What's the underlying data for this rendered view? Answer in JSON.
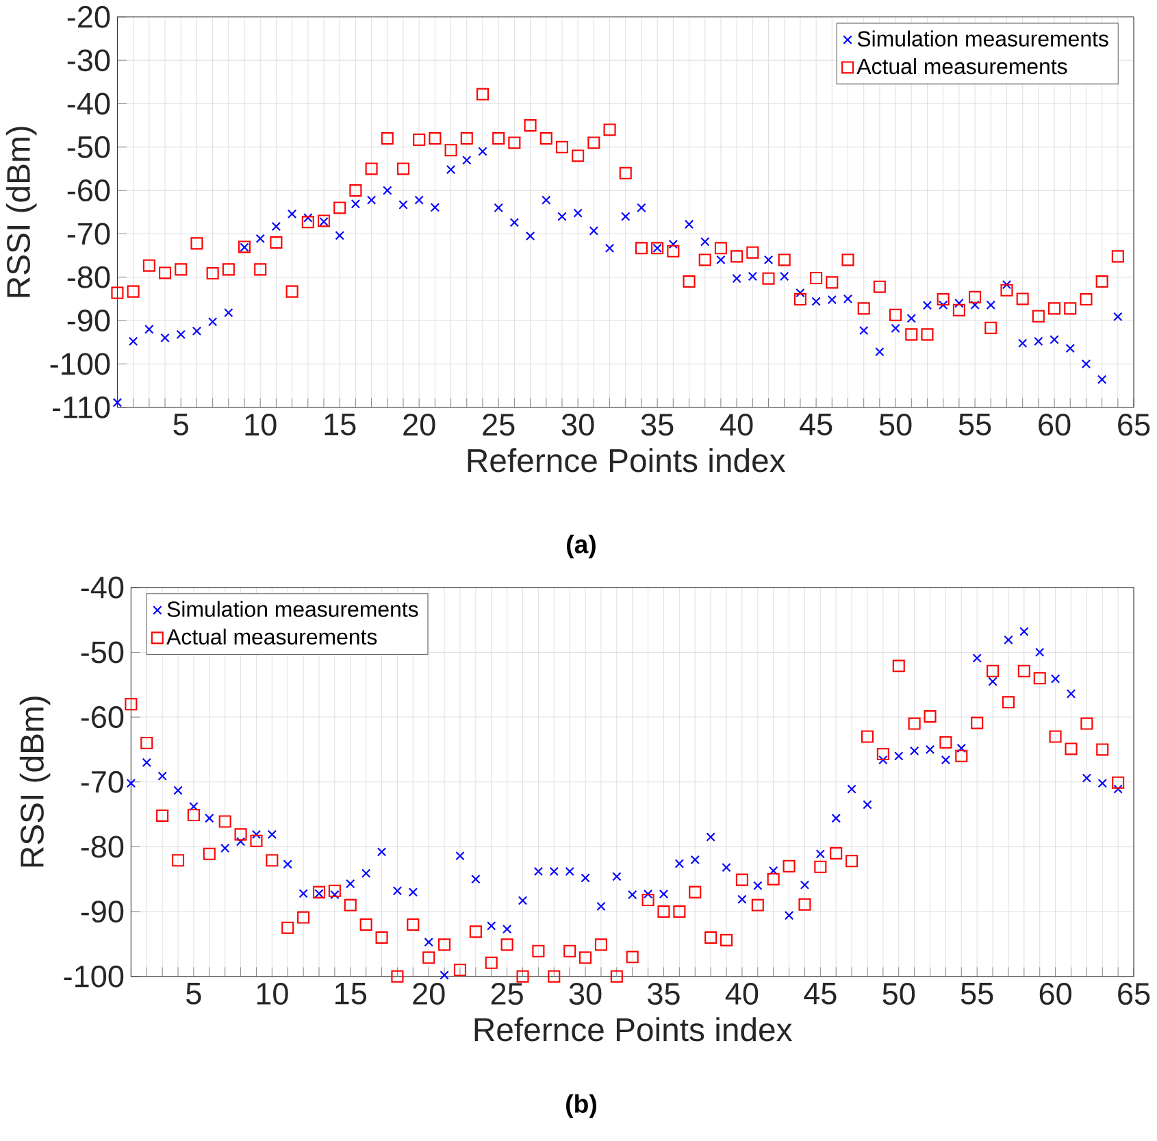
{
  "chart_data": [
    {
      "type": "scatter",
      "xlabel": "Refernce Points index",
      "ylabel": "RSSI (dBm)",
      "annotations": [
        "(a)"
      ],
      "x": [
        1,
        2,
        3,
        4,
        5,
        6,
        7,
        8,
        9,
        10,
        11,
        12,
        13,
        14,
        15,
        16,
        17,
        18,
        19,
        20,
        21,
        22,
        23,
        24,
        25,
        26,
        27,
        28,
        29,
        30,
        31,
        32,
        33,
        34,
        35,
        36,
        37,
        38,
        39,
        40,
        41,
        42,
        43,
        44,
        45,
        46,
        47,
        48,
        49,
        50,
        51,
        52,
        53,
        54,
        55,
        56,
        57,
        58,
        59,
        60,
        61,
        62,
        63,
        64
      ],
      "xlim": [
        1,
        65
      ],
      "ylim": [
        -110,
        -20
      ],
      "xticks": [
        {
          "value": 1,
          "label": null
        },
        {
          "value": 2,
          "label": null
        },
        {
          "value": 3,
          "label": null
        },
        {
          "value": 4,
          "label": null
        },
        5,
        {
          "value": 6,
          "label": null
        },
        {
          "value": 7,
          "label": null
        },
        {
          "value": 8,
          "label": null
        },
        {
          "value": 9,
          "label": null
        },
        10,
        {
          "value": 11,
          "label": null
        },
        {
          "value": 12,
          "label": null
        },
        {
          "value": 13,
          "label": null
        },
        {
          "value": 14,
          "label": null
        },
        15,
        {
          "value": 16,
          "label": null
        },
        {
          "value": 17,
          "label": null
        },
        {
          "value": 18,
          "label": null
        },
        {
          "value": 19,
          "label": null
        },
        20,
        {
          "value": 21,
          "label": null
        },
        {
          "value": 22,
          "label": null
        },
        {
          "value": 23,
          "label": null
        },
        {
          "value": 24,
          "label": null
        },
        25,
        {
          "value": 26,
          "label": null
        },
        {
          "value": 27,
          "label": null
        },
        {
          "value": 28,
          "label": null
        },
        {
          "value": 29,
          "label": null
        },
        30,
        {
          "value": 31,
          "label": null
        },
        {
          "value": 32,
          "label": null
        },
        {
          "value": 33,
          "label": null
        },
        {
          "value": 34,
          "label": null
        },
        35,
        {
          "value": 36,
          "label": null
        },
        {
          "value": 37,
          "label": null
        },
        {
          "value": 38,
          "label": null
        },
        {
          "value": 39,
          "label": null
        },
        40,
        {
          "value": 41,
          "label": null
        },
        {
          "value": 42,
          "label": null
        },
        {
          "value": 43,
          "label": null
        },
        {
          "value": 44,
          "label": null
        },
        45,
        {
          "value": 46,
          "label": null
        },
        {
          "value": 47,
          "label": null
        },
        {
          "value": 48,
          "label": null
        },
        {
          "value": 49,
          "label": null
        },
        50,
        {
          "value": 51,
          "label": null
        },
        {
          "value": 52,
          "label": null
        },
        {
          "value": 53,
          "label": null
        },
        {
          "value": 54,
          "label": null
        },
        55,
        {
          "value": 56,
          "label": null
        },
        {
          "value": 57,
          "label": null
        },
        {
          "value": 58,
          "label": null
        },
        {
          "value": 59,
          "label": null
        },
        60,
        {
          "value": 61,
          "label": null
        },
        {
          "value": 62,
          "label": null
        },
        {
          "value": 63,
          "label": null
        },
        {
          "value": 64,
          "label": null
        },
        65
      ],
      "yticks": [
        -110,
        -100,
        -90,
        -80,
        -70,
        -60,
        -50,
        -40,
        -30,
        -20
      ],
      "grid": true,
      "legend": "top right",
      "series": [
        {
          "name": "Simulation measurements",
          "color": "#0000ff",
          "marker": "cross",
          "values": [
            -108.9,
            -94.8,
            -92,
            -94,
            -93.2,
            -92.4,
            -90.3,
            -88.2,
            -73.1,
            -71.1,
            -68.3,
            -65.4,
            -66.3,
            -67.2,
            -70.4,
            -63.1,
            -62.2,
            -60,
            -63.3,
            -62.2,
            -63.9,
            -55.2,
            -53,
            -51,
            -64,
            -67.4,
            -70.5,
            -62.2,
            -66,
            -65.2,
            -69.3,
            -73.3,
            -66,
            -64,
            -73.3,
            -72.4,
            -67.8,
            -71.8,
            -76,
            -80.3,
            -79.8,
            -76,
            -79.8,
            -83.6,
            -85.6,
            -85.2,
            -85,
            -92.3,
            -97.2,
            -91.8,
            -89.5,
            -86.5,
            -86.4,
            -86,
            -86.4,
            -86.4,
            -81.7,
            -95.2,
            -94.8,
            -94.4,
            -96.4,
            -100,
            -103.6,
            -89.1
          ]
        },
        {
          "name": "Actual measurements",
          "color": "#ff0000",
          "marker": "square",
          "values": [
            -83.6,
            -83.3,
            -77.3,
            -79,
            -78.2,
            -72.2,
            -79.1,
            -78.2,
            -73,
            -78.2,
            -72,
            -83.3,
            -67.3,
            -67,
            -64,
            -60,
            -55,
            -48,
            -55,
            -48.3,
            -48,
            -50.7,
            -48,
            -37.8,
            -48,
            -49,
            -45,
            -48,
            -50,
            -52,
            -49,
            -46,
            -56,
            -73.3,
            -73.3,
            -74,
            -81,
            -76,
            -73.3,
            -75.2,
            -74.3,
            -80.3,
            -76,
            -85.1,
            -80.2,
            -81.2,
            -76,
            -87.2,
            -82.2,
            -88.7,
            -93.2,
            -93.2,
            -85.1,
            -87.6,
            -84.6,
            -91.7,
            -83,
            -85,
            -89,
            -87.2,
            -87.2,
            -85.1,
            -81,
            -75.2
          ]
        }
      ]
    },
    {
      "type": "scatter",
      "xlabel": "Refernce Points index",
      "ylabel": "RSSI (dBm)",
      "annotations": [
        "(b)"
      ],
      "x": [
        1,
        2,
        3,
        4,
        5,
        6,
        7,
        8,
        9,
        10,
        11,
        12,
        13,
        14,
        15,
        16,
        17,
        18,
        19,
        20,
        21,
        22,
        23,
        24,
        25,
        26,
        27,
        28,
        29,
        30,
        31,
        32,
        33,
        34,
        35,
        36,
        37,
        38,
        39,
        40,
        41,
        42,
        43,
        44,
        45,
        46,
        47,
        48,
        49,
        50,
        51,
        52,
        53,
        54,
        55,
        56,
        57,
        58,
        59,
        60,
        61,
        62,
        63,
        64
      ],
      "xlim": [
        1,
        65
      ],
      "ylim": [
        -100,
        -40
      ],
      "xticks": [
        {
          "value": 1,
          "label": null
        },
        {
          "value": 2,
          "label": null
        },
        {
          "value": 3,
          "label": null
        },
        {
          "value": 4,
          "label": null
        },
        5,
        {
          "value": 6,
          "label": null
        },
        {
          "value": 7,
          "label": null
        },
        {
          "value": 8,
          "label": null
        },
        {
          "value": 9,
          "label": null
        },
        10,
        {
          "value": 11,
          "label": null
        },
        {
          "value": 12,
          "label": null
        },
        {
          "value": 13,
          "label": null
        },
        {
          "value": 14,
          "label": null
        },
        15,
        {
          "value": 16,
          "label": null
        },
        {
          "value": 17,
          "label": null
        },
        {
          "value": 18,
          "label": null
        },
        {
          "value": 19,
          "label": null
        },
        20,
        {
          "value": 21,
          "label": null
        },
        {
          "value": 22,
          "label": null
        },
        {
          "value": 23,
          "label": null
        },
        {
          "value": 24,
          "label": null
        },
        25,
        {
          "value": 26,
          "label": null
        },
        {
          "value": 27,
          "label": null
        },
        {
          "value": 28,
          "label": null
        },
        {
          "value": 29,
          "label": null
        },
        30,
        {
          "value": 31,
          "label": null
        },
        {
          "value": 32,
          "label": null
        },
        {
          "value": 33,
          "label": null
        },
        {
          "value": 34,
          "label": null
        },
        35,
        {
          "value": 36,
          "label": null
        },
        {
          "value": 37,
          "label": null
        },
        {
          "value": 38,
          "label": null
        },
        {
          "value": 39,
          "label": null
        },
        40,
        {
          "value": 41,
          "label": null
        },
        {
          "value": 42,
          "label": null
        },
        {
          "value": 43,
          "label": null
        },
        {
          "value": 44,
          "label": null
        },
        45,
        {
          "value": 46,
          "label": null
        },
        {
          "value": 47,
          "label": null
        },
        {
          "value": 48,
          "label": null
        },
        {
          "value": 49,
          "label": null
        },
        50,
        {
          "value": 51,
          "label": null
        },
        {
          "value": 52,
          "label": null
        },
        {
          "value": 53,
          "label": null
        },
        {
          "value": 54,
          "label": null
        },
        55,
        {
          "value": 56,
          "label": null
        },
        {
          "value": 57,
          "label": null
        },
        {
          "value": 58,
          "label": null
        },
        {
          "value": 59,
          "label": null
        },
        60,
        {
          "value": 61,
          "label": null
        },
        {
          "value": 62,
          "label": null
        },
        {
          "value": 63,
          "label": null
        },
        {
          "value": 64,
          "label": null
        },
        65
      ],
      "yticks": [
        -100,
        -90,
        -80,
        -70,
        -60,
        -50,
        -40
      ],
      "grid": true,
      "legend": "top left",
      "series": [
        {
          "name": "Simulation measurements",
          "color": "#0000ff",
          "marker": "cross",
          "values": [
            -70.2,
            -67,
            -69.1,
            -71.3,
            -73.8,
            -75.6,
            -80.2,
            -79.2,
            -78.1,
            -78.1,
            -82.7,
            -87.2,
            -87.2,
            -87.4,
            -85.7,
            -84.1,
            -80.8,
            -86.8,
            -87,
            -94.7,
            -99.8,
            -81.4,
            -85,
            -92.2,
            -92.7,
            -88.3,
            -83.8,
            -83.8,
            -83.8,
            -84.8,
            -89.2,
            -84.6,
            -87.4,
            -87.3,
            -87.3,
            -82.6,
            -82,
            -78.5,
            -83.2,
            -88.1,
            -86,
            -83.7,
            -90.6,
            -85.9,
            -81.1,
            -75.6,
            -71.1,
            -73.5,
            -66.6,
            -66,
            -65.2,
            -65,
            -66.6,
            -64.8,
            -50.9,
            -54.5,
            -48.1,
            -46.8,
            -50,
            -54.1,
            -56.4,
            -69.4,
            -70.2,
            -71.1
          ]
        },
        {
          "name": "Actual measurements",
          "color": "#ff0000",
          "marker": "square",
          "values": [
            -58,
            -64,
            -75.2,
            -82.1,
            -75.1,
            -81.1,
            -76.1,
            -78.1,
            -79.1,
            -82.1,
            -92.5,
            -90.9,
            -87,
            -86.8,
            -89,
            -92,
            -94,
            -100,
            -92,
            -97.1,
            -95.1,
            -99,
            -93.1,
            -97.9,
            -95.1,
            -100,
            -96.1,
            -100,
            -96.1,
            -97.1,
            -95.1,
            -100,
            -97,
            -88.2,
            -90,
            -90,
            -87,
            -94,
            -94.4,
            -85.1,
            -89,
            -85,
            -83,
            -88.9,
            -83.1,
            -81,
            -82.2,
            -63,
            -65.7,
            -52.1,
            -61,
            -59.9,
            -63.9,
            -66,
            -60.9,
            -52.9,
            -57.7,
            -52.9,
            -54,
            -63,
            -64.9,
            -61,
            -65,
            -70.1
          ]
        }
      ]
    }
  ]
}
